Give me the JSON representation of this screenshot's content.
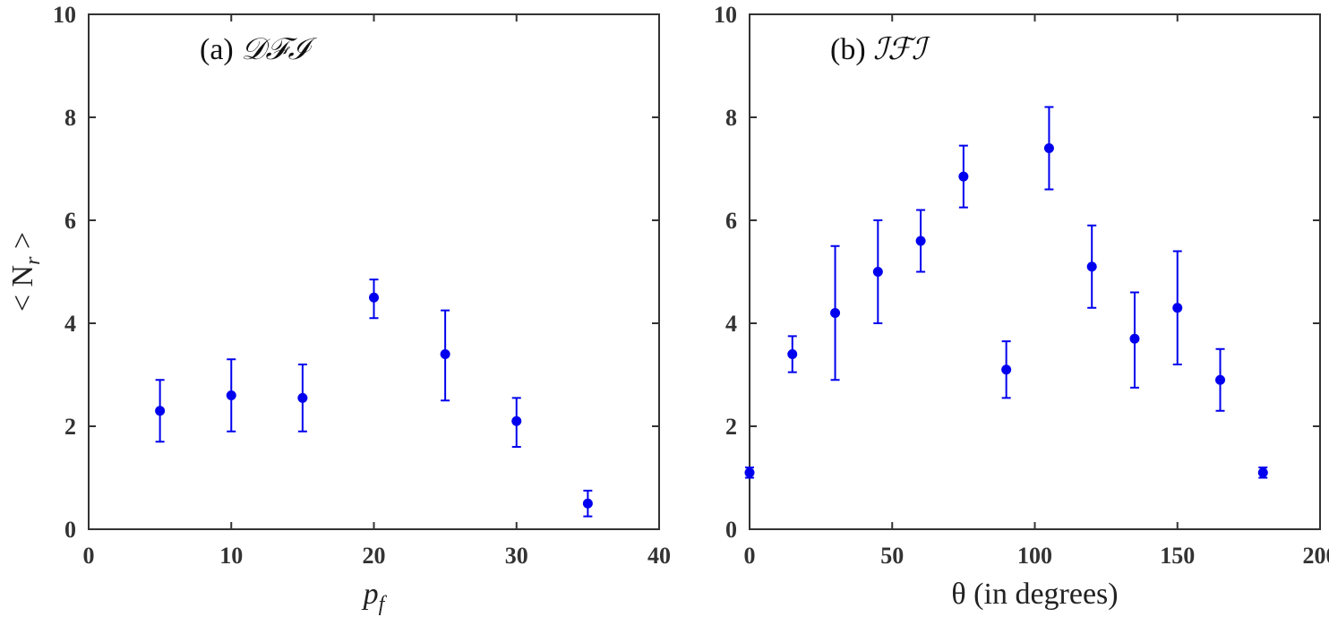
{
  "chart_data": [
    {
      "type": "scatter",
      "annotation_prefix": "(a) ",
      "annotation_script": "𝒟ℱℐ",
      "xlabel": "p",
      "xlabel_sub": "f",
      "ylabel": "< N",
      "ylabel_sub": "r",
      "ylabel_suffix": " >",
      "xlim": [
        0,
        40
      ],
      "ylim": [
        0,
        10
      ],
      "xticks": [
        0,
        10,
        20,
        30,
        40
      ],
      "yticks": [
        0,
        2,
        4,
        6,
        8,
        10
      ],
      "grid": false,
      "color": "#0000ee",
      "points": [
        {
          "x": 5,
          "y": 2.3,
          "err_low": 1.7,
          "err_high": 2.9
        },
        {
          "x": 10,
          "y": 2.6,
          "err_low": 1.9,
          "err_high": 3.3
        },
        {
          "x": 15,
          "y": 2.55,
          "err_low": 1.9,
          "err_high": 3.2
        },
        {
          "x": 20,
          "y": 4.5,
          "err_low": 4.1,
          "err_high": 4.85
        },
        {
          "x": 25,
          "y": 3.4,
          "err_low": 2.5,
          "err_high": 4.25
        },
        {
          "x": 30,
          "y": 2.1,
          "err_low": 1.6,
          "err_high": 2.55
        },
        {
          "x": 35,
          "y": 0.5,
          "err_low": 0.25,
          "err_high": 0.75
        }
      ]
    },
    {
      "type": "scatter",
      "annotation_prefix": "(b) ",
      "annotation_script": "ℐℱℐ",
      "xlabel": "θ (in degrees)",
      "xlim": [
        0,
        200
      ],
      "ylim": [
        0,
        10
      ],
      "xticks": [
        0,
        50,
        100,
        150,
        200
      ],
      "yticks": [
        0,
        2,
        4,
        6,
        8,
        10
      ],
      "grid": false,
      "color": "#0000ee",
      "points": [
        {
          "x": 0,
          "y": 1.1,
          "err_low": 1.0,
          "err_high": 1.2
        },
        {
          "x": 15,
          "y": 3.4,
          "err_low": 3.05,
          "err_high": 3.75
        },
        {
          "x": 30,
          "y": 4.2,
          "err_low": 2.9,
          "err_high": 5.5
        },
        {
          "x": 45,
          "y": 5.0,
          "err_low": 4.0,
          "err_high": 6.0
        },
        {
          "x": 60,
          "y": 5.6,
          "err_low": 5.0,
          "err_high": 6.2
        },
        {
          "x": 75,
          "y": 6.85,
          "err_low": 6.25,
          "err_high": 7.45
        },
        {
          "x": 90,
          "y": 3.1,
          "err_low": 2.55,
          "err_high": 3.65
        },
        {
          "x": 105,
          "y": 7.4,
          "err_low": 6.6,
          "err_high": 8.2
        },
        {
          "x": 120,
          "y": 5.1,
          "err_low": 4.3,
          "err_high": 5.9
        },
        {
          "x": 135,
          "y": 3.7,
          "err_low": 2.75,
          "err_high": 4.6
        },
        {
          "x": 150,
          "y": 4.3,
          "err_low": 3.2,
          "err_high": 5.4
        },
        {
          "x": 165,
          "y": 2.9,
          "err_low": 2.3,
          "err_high": 3.5
        },
        {
          "x": 180,
          "y": 1.1,
          "err_low": 1.0,
          "err_high": 1.2
        }
      ]
    }
  ]
}
